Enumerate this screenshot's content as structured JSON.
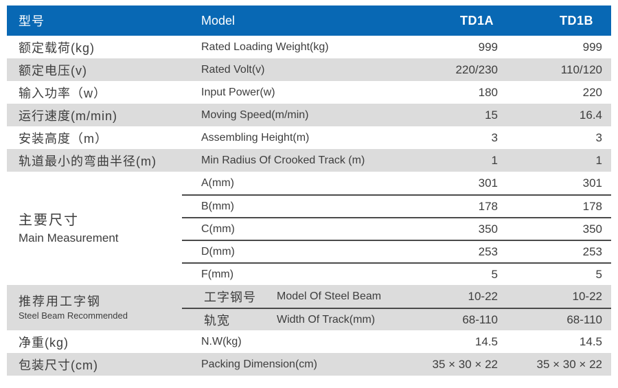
{
  "table": {
    "colors": {
      "header_bg": "#0868b4",
      "row_alt_bg": "#dcdcdc",
      "text": "#3d3d3d",
      "header_text": "#ffffff",
      "divider": "#4a4a4a"
    },
    "header": {
      "label_cn": "型号",
      "label_en": "Model",
      "model_a": "TD1A",
      "model_b": "TD1B"
    },
    "rows": [
      {
        "cn": "额定载荷(kg)",
        "en": "Rated Loading Weight(kg)",
        "a": "999",
        "b": "999"
      },
      {
        "cn": "额定电压(v)",
        "en": "Rated Volt(v)",
        "a": "220/230",
        "b": "110/120"
      },
      {
        "cn": "输入功率（w）",
        "en": "Input Power(w)",
        "a": "180",
        "b": "220"
      },
      {
        "cn": "运行速度(m/min)",
        "en": "Moving Speed(m/min)",
        "a": "15",
        "b": "16.4"
      },
      {
        "cn": "安装高度（m）",
        "en": "Assembling Height(m)",
        "a": "3",
        "b": "3"
      },
      {
        "cn": "轨道最小的弯曲半径(m)",
        "en": "Min Radius Of Crooked Track (m)",
        "a": "1",
        "b": "1"
      }
    ],
    "measurement_section": {
      "label_cn": "主要尺寸",
      "label_en": "Main Measurement",
      "rows": [
        {
          "en": "A(mm)",
          "a": "301",
          "b": "301"
        },
        {
          "en": "B(mm)",
          "a": "178",
          "b": "178"
        },
        {
          "en": "C(mm)",
          "a": "350",
          "b": "350"
        },
        {
          "en": "D(mm)",
          "a": "253",
          "b": "253"
        },
        {
          "en": "F(mm)",
          "a": "5",
          "b": "5"
        }
      ]
    },
    "steel_section": {
      "label_cn": "推荐用工字钢",
      "label_en": "Steel Beam Recommended",
      "rows": [
        {
          "cn": "工字钢号",
          "en": "Model Of Steel Beam",
          "a": "10-22",
          "b": "10-22"
        },
        {
          "cn": "轨宽",
          "en": "Width Of Track(mm)",
          "a": "68-110",
          "b": "68-110"
        }
      ]
    },
    "bottom_rows": [
      {
        "cn": "净重(kg)",
        "en": "N.W(kg)",
        "a": "14.5",
        "b": "14.5"
      },
      {
        "cn": "包装尺寸(cm)",
        "en": "Packing Dimension(cm)",
        "a": "35 × 30 × 22",
        "b": "35 × 30 × 22"
      }
    ]
  }
}
